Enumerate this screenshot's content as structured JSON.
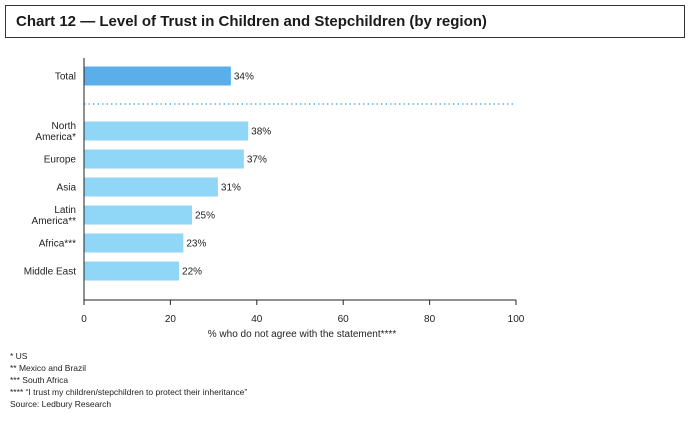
{
  "title": "Chart 12 — Level of Trust in Children and Stepchildren (by region)",
  "footnotes": [
    "* US",
    "** Mexico and Brazil",
    "*** South Africa",
    "**** “I trust my children/stepchildren to protect their inheritance”",
    "Source: Ledbury Research"
  ],
  "chart_data": {
    "type": "bar",
    "orientation": "horizontal",
    "xlabel": "% who do not agree with the statement****",
    "xlim": [
      0,
      100
    ],
    "xticks": [
      0,
      20,
      40,
      60,
      80,
      100
    ],
    "grid": false,
    "legend": "none",
    "total": {
      "label": "Total",
      "value": 34,
      "value_label": "34%",
      "color": "#5aaeea"
    },
    "categories": [
      [
        "North",
        "America*"
      ],
      [
        "Europe"
      ],
      [
        "Asia"
      ],
      [
        "Latin",
        "America**"
      ],
      [
        "Africa***"
      ],
      [
        "Middle East"
      ]
    ],
    "values": [
      38,
      37,
      31,
      25,
      23,
      22
    ],
    "value_labels": [
      "38%",
      "37%",
      "31%",
      "25%",
      "23%",
      "22%"
    ],
    "bar_color": "#8fd6f7",
    "divider_color": "#3aa0d8"
  }
}
